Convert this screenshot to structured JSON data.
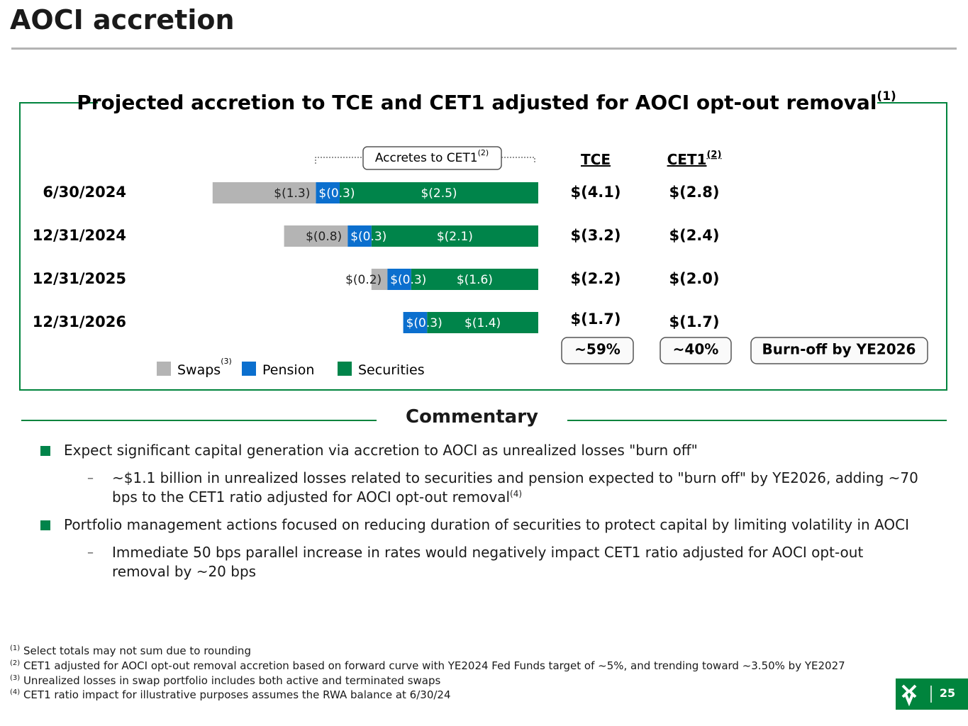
{
  "header": {
    "title": "AOCI accretion"
  },
  "chart_data": {
    "type": "stacked_bar_horizontal",
    "title": "Projected accretion to TCE and CET1 adjusted for AOCI opt-out removal",
    "title_sup": "(1)",
    "bracket_label": "Accretes to CET1",
    "bracket_sup": "(2)",
    "categories": [
      "6/30/2024",
      "12/31/2024",
      "12/31/2025",
      "12/31/2026"
    ],
    "series": [
      {
        "name": "Swaps",
        "name_sup": "(3)",
        "color": "#b4b4b4",
        "values": [
          -1.3,
          -0.8,
          -0.2,
          null
        ],
        "value_labels": [
          "$(1.3)",
          "$(0.8)",
          "$(0.2)",
          null
        ]
      },
      {
        "name": "Pension",
        "color": "#0b6fce",
        "values": [
          -0.3,
          -0.3,
          -0.3,
          -0.3
        ],
        "value_labels": [
          "$(0.3)",
          "$(0.3)",
          "$(0.3)",
          "$(0.3)"
        ]
      },
      {
        "name": "Securities",
        "color": "#00844a",
        "values": [
          -2.5,
          -2.1,
          -1.6,
          -1.4
        ],
        "value_labels": [
          "$(2.5)",
          "$(2.1)",
          "$(1.6)",
          "$(1.4)"
        ]
      }
    ],
    "legend": "bottom-left"
  },
  "side_table": {
    "columns": [
      {
        "header": "TCE",
        "values": [
          "$(4.1)",
          "$(3.2)",
          "$(2.2)",
          "$(1.7)"
        ],
        "badge": "~59%"
      },
      {
        "header": "CET1",
        "header_sup": "(2)",
        "values": [
          "$(2.8)",
          "$(2.4)",
          "$(2.0)",
          "$(1.7)"
        ],
        "badge": "~40%"
      }
    ],
    "note_badge": "Burn-off by YE2026"
  },
  "commentary": {
    "title": "Commentary",
    "items": [
      {
        "text": "Expect significant capital generation via accretion to AOCI as unrealized losses \"burn off\"",
        "sub": [
          {
            "text": "~$1.1 billion in unrealized losses related to securities and pension expected to \"burn off\" by YE2026, adding ~70 bps to the CET1 ratio adjusted for AOCI opt-out removal",
            "sup": "(4)"
          }
        ]
      },
      {
        "text": "Portfolio management actions focused on reducing duration of securities to protect capital by limiting volatility in AOCI",
        "sub": [
          {
            "text": "Immediate 50 bps parallel increase in rates would negatively impact CET1 ratio adjusted for AOCI opt-out removal by ~20 bps"
          }
        ]
      }
    ]
  },
  "footnotes": [
    {
      "mark": "(1)",
      "text": "Select totals may not sum due to rounding"
    },
    {
      "mark": "(2)",
      "text": "CET1 adjusted for AOCI opt-out removal accretion based on forward curve with YE2024 Fed Funds target of ~5%, and trending toward ~3.50% by YE2027"
    },
    {
      "mark": "(3)",
      "text": "Unrealized losses in swap portfolio includes both active and terminated swaps"
    },
    {
      "mark": "(4)",
      "text": "CET1 ratio impact for illustrative purposes assumes the RWA balance at 6/30/24"
    }
  ],
  "page_number": "25"
}
